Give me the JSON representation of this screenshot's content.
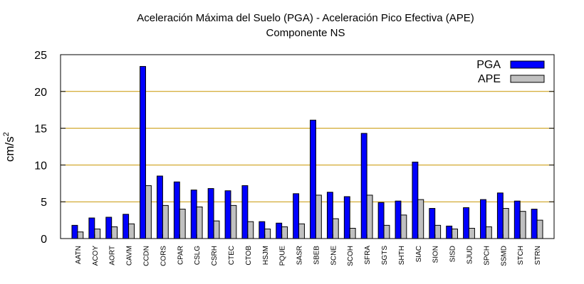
{
  "chart_data": {
    "type": "bar",
    "title": "Aceleración Máxima del Suelo (PGA) -  Aceleración Pico Efectiva (APE)",
    "subtitle": "Componente NS",
    "xlabel": "",
    "ylabel": "cm/s",
    "ylabel_superscript": "2",
    "ylim": [
      0,
      25
    ],
    "yticks": [
      "0",
      "5",
      "10",
      "15",
      "20",
      "25"
    ],
    "grid": "horizontal",
    "legend_position": "top-right",
    "categories": [
      "AATN",
      "ACOY",
      "AORT",
      "CAVM",
      "CCDN",
      "CORS",
      "CPAR",
      "CSLG",
      "CSRH",
      "CTEC",
      "CTOB",
      "HSJM",
      "PQUE",
      "SASR",
      "SBEB",
      "SCNE",
      "SCOH",
      "SFRA",
      "SGTS",
      "SHTH",
      "SIAC",
      "SION",
      "SISD",
      "SJUD",
      "SPCH",
      "SSMD",
      "STCH",
      "STRN"
    ],
    "series": [
      {
        "name": "PGA",
        "color": "#0000ff",
        "values": [
          1.8,
          2.8,
          2.9,
          3.3,
          23.4,
          8.5,
          7.7,
          6.6,
          6.8,
          6.5,
          7.2,
          2.3,
          2.1,
          6.1,
          16.1,
          6.3,
          5.7,
          14.3,
          4.9,
          5.1,
          10.4,
          4.1,
          1.7,
          4.2,
          5.3,
          6.2,
          5.1,
          4.0
        ]
      },
      {
        "name": "APE",
        "color": "#c0c0c0",
        "values": [
          0.9,
          1.3,
          1.6,
          2.0,
          7.2,
          4.5,
          4.0,
          4.3,
          2.4,
          4.5,
          2.3,
          1.3,
          1.6,
          2.0,
          5.9,
          2.7,
          1.4,
          5.9,
          1.8,
          3.2,
          5.3,
          1.8,
          1.3,
          1.4,
          1.6,
          4.1,
          3.7,
          2.5
        ]
      }
    ]
  }
}
